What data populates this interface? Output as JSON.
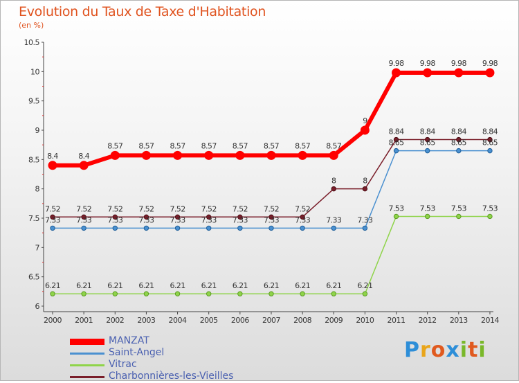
{
  "title": "Evolution du Taux de Taxe d'Habitation",
  "unit_label": "(en %)",
  "logo": {
    "letters": [
      "P",
      "r",
      "o",
      "x",
      "i",
      "t",
      "i"
    ],
    "colors": [
      "#2d8ed8",
      "#e9a51a",
      "#e05a1f",
      "#2d8ed8",
      "#7ab82a",
      "#e05a1f",
      "#7ab82a"
    ]
  },
  "chart_data": {
    "type": "line",
    "x": [
      "2000",
      "2001",
      "2002",
      "2003",
      "2004",
      "2005",
      "2006",
      "2007",
      "2008",
      "2009",
      "2010",
      "2011",
      "2012",
      "2013",
      "2014"
    ],
    "ylim": [
      6,
      10.5
    ],
    "yticks": [
      "6",
      "6.5",
      "7",
      "7.5",
      "8",
      "8.5",
      "9",
      "9.5",
      "10",
      "10.5"
    ],
    "grid": false,
    "legend_position": "bottom-left",
    "series": [
      {
        "name": "MANZAT",
        "color": "#ff0000",
        "values": [
          8.4,
          8.4,
          8.57,
          8.57,
          8.57,
          8.57,
          8.57,
          8.57,
          8.57,
          8.57,
          9,
          9.98,
          9.98,
          9.98,
          9.98
        ],
        "labels": [
          "8.4",
          "8.4",
          "8.57",
          "8.57",
          "8.57",
          "8.57",
          "8.57",
          "8.57",
          "8.57",
          "8.57",
          "9",
          "9.98",
          "9.98",
          "9.98",
          "9.98"
        ]
      },
      {
        "name": "Saint-Angel",
        "color": "#4a90d0",
        "values": [
          7.33,
          7.33,
          7.33,
          7.33,
          7.33,
          7.33,
          7.33,
          7.33,
          7.33,
          7.33,
          7.33,
          8.65,
          8.65,
          8.65,
          8.65
        ],
        "labels": [
          "7.33",
          "7.33",
          "7.33",
          "7.33",
          "7.33",
          "7.33",
          "7.33",
          "7.33",
          "7.33",
          "7.33",
          "7.33",
          "8.65",
          "8.65",
          "8.65",
          "8.65"
        ]
      },
      {
        "name": "Vitrac",
        "color": "#8fd44a",
        "values": [
          6.21,
          6.21,
          6.21,
          6.21,
          6.21,
          6.21,
          6.21,
          6.21,
          6.21,
          6.21,
          6.21,
          7.53,
          7.53,
          7.53,
          7.53
        ],
        "labels": [
          "6.21",
          "6.21",
          "6.21",
          "6.21",
          "6.21",
          "6.21",
          "6.21",
          "6.21",
          "6.21",
          "6.21",
          "6.21",
          "7.53",
          "7.53",
          "7.53",
          "7.53"
        ]
      },
      {
        "name": "Charbonnières-les-Vieilles",
        "color": "#7a1e2a",
        "values": [
          7.52,
          7.52,
          7.52,
          7.52,
          7.52,
          7.52,
          7.52,
          7.52,
          7.52,
          8,
          8,
          8.84,
          8.84,
          8.84,
          8.84
        ],
        "labels": [
          "7.52",
          "7.52",
          "7.52",
          "7.52",
          "7.52",
          "7.52",
          "7.52",
          "7.52",
          "7.52",
          "8",
          "8",
          "8.84",
          "8.84",
          "8.84",
          "8.84"
        ]
      }
    ]
  }
}
